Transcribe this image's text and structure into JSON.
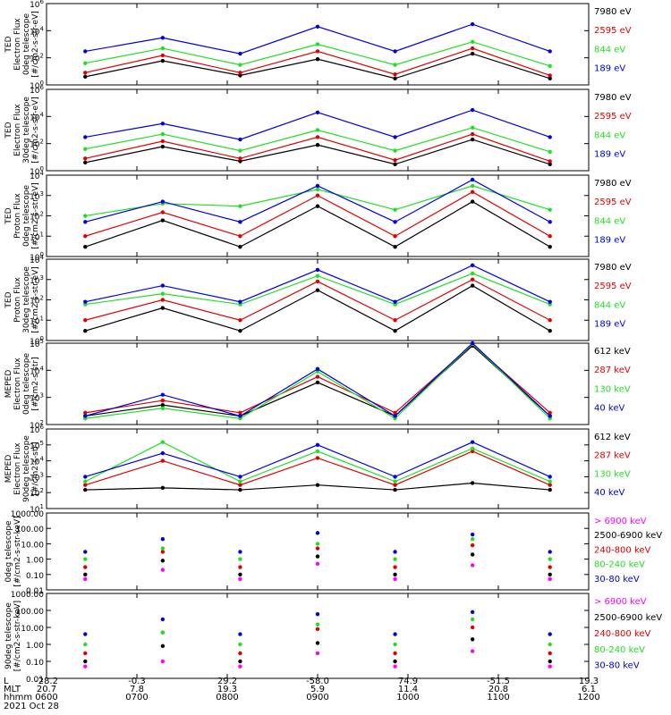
{
  "colors": {
    "black": "#000000",
    "red": "#e00000",
    "green": "#20e020",
    "blue": "#0000e0",
    "magenta": "#ff00ff"
  },
  "footer": {
    "row_labels": [
      "L",
      "MLT",
      "hhmm",
      "2021 Oct 28"
    ],
    "L_values": [
      "-28.2",
      "-0.3",
      "29.2",
      "-58.0",
      "74.9",
      "-51.5",
      "19.3"
    ],
    "MLT_values": [
      "20.7",
      "7.8",
      "19.3",
      "5.9",
      "11.4",
      "20.8",
      "6.1"
    ],
    "hhmm_values": [
      "0600",
      "0700",
      "0800",
      "0900",
      "1000",
      "1100",
      "1200"
    ]
  },
  "chart_data": [
    {
      "type": "line",
      "ylabel_lines": [
        "TED",
        "Electron Flux",
        "0deg telescope",
        "[#/cm2-s-str-eV]"
      ],
      "y_ticks": [
        "10^6",
        "10^4",
        "10^2",
        "10^0"
      ],
      "y_log": true,
      "ylim": [
        1,
        1000000
      ],
      "x": [
        "0600",
        "0700",
        "0800",
        "0900",
        "1000",
        "1100",
        "1200"
      ],
      "series": [
        {
          "name": "7980 eV",
          "color": "black",
          "values": [
            4,
            60,
            5,
            80,
            3,
            200,
            3
          ]
        },
        {
          "name": "2595 eV",
          "color": "red",
          "values": [
            8,
            150,
            8,
            300,
            6,
            500,
            5
          ]
        },
        {
          "name": "844 eV",
          "color": "green",
          "values": [
            40,
            500,
            30,
            1000,
            30,
            1500,
            25
          ]
        },
        {
          "name": "189 eV",
          "color": "blue",
          "values": [
            300,
            3000,
            200,
            20000,
            300,
            30000,
            300
          ]
        }
      ]
    },
    {
      "type": "line",
      "ylabel_lines": [
        "TED",
        "Electron Flux",
        "30deg telescope",
        "[#/cm2-s-str-eV]"
      ],
      "y_ticks": [
        "10^6",
        "10^4",
        "10^2",
        "10^0"
      ],
      "y_log": true,
      "ylim": [
        1,
        1000000
      ],
      "x": [
        "0600",
        "0700",
        "0800",
        "0900",
        "1000",
        "1100",
        "1200"
      ],
      "series": [
        {
          "name": "7980 eV",
          "color": "black",
          "values": [
            4,
            60,
            5,
            80,
            3,
            200,
            3
          ]
        },
        {
          "name": "2595 eV",
          "color": "red",
          "values": [
            8,
            150,
            8,
            300,
            6,
            500,
            5
          ]
        },
        {
          "name": "844 eV",
          "color": "green",
          "values": [
            40,
            500,
            30,
            1000,
            30,
            1500,
            25
          ]
        },
        {
          "name": "189 eV",
          "color": "blue",
          "values": [
            300,
            3000,
            200,
            20000,
            300,
            30000,
            300
          ]
        }
      ]
    },
    {
      "type": "line",
      "ylabel_lines": [
        "TED",
        "Proton Flux",
        "0deg telescope",
        "[#/cm2-s-str-eV]"
      ],
      "y_ticks": [
        "10^4",
        "10^3",
        "10^2",
        "10^1",
        "10^0"
      ],
      "y_log": true,
      "ylim": [
        1,
        10000
      ],
      "x": [
        "0600",
        "0700",
        "0800",
        "0900",
        "1000",
        "1100",
        "1200"
      ],
      "series": [
        {
          "name": "7980 eV",
          "color": "black",
          "values": [
            3,
            60,
            3,
            300,
            3,
            500,
            3
          ]
        },
        {
          "name": "2595 eV",
          "color": "red",
          "values": [
            10,
            150,
            10,
            1000,
            10,
            1500,
            10
          ]
        },
        {
          "name": "844 eV",
          "color": "green",
          "values": [
            100,
            400,
            300,
            2000,
            200,
            3000,
            200
          ]
        },
        {
          "name": "189 eV",
          "color": "blue",
          "values": [
            50,
            500,
            50,
            3000,
            50,
            6000,
            50
          ]
        }
      ]
    },
    {
      "type": "line",
      "ylabel_lines": [
        "TED",
        "Proton Flux",
        "30deg telescope",
        "[#/cm2-s-str-eV]"
      ],
      "y_ticks": [
        "10^4",
        "10^3",
        "10^2",
        "10^1",
        "10^0"
      ],
      "y_log": true,
      "ylim": [
        1,
        10000
      ],
      "x": [
        "0600",
        "0700",
        "0800",
        "0900",
        "1000",
        "1100",
        "1200"
      ],
      "series": [
        {
          "name": "7980 eV",
          "color": "black",
          "values": [
            3,
            40,
            3,
            300,
            3,
            500,
            3
          ]
        },
        {
          "name": "2595 eV",
          "color": "red",
          "values": [
            10,
            100,
            10,
            800,
            10,
            1000,
            10
          ]
        },
        {
          "name": "844 eV",
          "color": "green",
          "values": [
            60,
            200,
            60,
            1500,
            60,
            2000,
            60
          ]
        },
        {
          "name": "189 eV",
          "color": "blue",
          "values": [
            80,
            500,
            80,
            3000,
            80,
            5000,
            80
          ]
        }
      ]
    },
    {
      "type": "line",
      "ylabel_lines": [
        "MEPED",
        "Electron Flux",
        "0deg telescope",
        "[#/cm2-s-str]"
      ],
      "y_ticks": [
        "10^5",
        "10^4",
        "10^3",
        "10^2"
      ],
      "y_log": true,
      "ylim": [
        70,
        100000
      ],
      "x": [
        "0600",
        "0700",
        "0800",
        "0900",
        "1000",
        "1100",
        "1200"
      ],
      "series": [
        {
          "name": "612 keV",
          "color": "black",
          "values": [
            150,
            400,
            150,
            3000,
            150,
            80000,
            150
          ]
        },
        {
          "name": "287 keV",
          "color": "red",
          "values": [
            200,
            600,
            200,
            5000,
            200,
            90000,
            200
          ]
        },
        {
          "name": "130 keV",
          "color": "green",
          "values": [
            120,
            300,
            120,
            8000,
            120,
            95000,
            120
          ]
        },
        {
          "name": "40 keV",
          "color": "blue",
          "values": [
            150,
            1000,
            150,
            10000,
            150,
            100000,
            150
          ]
        }
      ]
    },
    {
      "type": "line",
      "ylabel_lines": [
        "MEPED",
        "Electron Flux",
        "90deg telescope",
        "[#/cm2-s-str]"
      ],
      "y_ticks": [
        "10^6",
        "10^5",
        "10^4",
        "10^3",
        "10^2",
        "10^1"
      ],
      "y_log": true,
      "ylim": [
        10,
        1000000
      ],
      "x": [
        "0600",
        "0700",
        "0800",
        "0900",
        "1000",
        "1100",
        "1200"
      ],
      "series": [
        {
          "name": "612 keV",
          "color": "black",
          "values": [
            150,
            200,
            150,
            300,
            150,
            400,
            150
          ]
        },
        {
          "name": "287 keV",
          "color": "red",
          "values": [
            300,
            10000,
            300,
            15000,
            300,
            40000,
            300
          ]
        },
        {
          "name": "130 keV",
          "color": "green",
          "values": [
            500,
            150000,
            500,
            40000,
            500,
            60000,
            500
          ]
        },
        {
          "name": "40 keV",
          "color": "blue",
          "values": [
            1000,
            30000,
            1000,
            100000,
            1000,
            150000,
            1000
          ]
        }
      ]
    },
    {
      "type": "scatter",
      "ylabel_lines": [
        "0deg telescope",
        "[#/cm2-s-str-keV]"
      ],
      "y_ticks": [
        "1000.00",
        "100.00",
        "10.00",
        "1.00",
        "0.10",
        "0.01"
      ],
      "y_log": true,
      "ylim": [
        0.01,
        1000
      ],
      "x": [
        "0600",
        "0700",
        "0800",
        "0900",
        "1000",
        "1100",
        "1200"
      ],
      "series": [
        {
          "name": "> 6900 keV",
          "color": "magenta",
          "values": [
            0.05,
            0.2,
            0.05,
            0.5,
            0.05,
            0.4,
            0.05
          ]
        },
        {
          "name": "2500-6900 keV",
          "color": "black",
          "values": [
            0.1,
            0.8,
            0.1,
            1.5,
            0.1,
            2,
            0.1
          ]
        },
        {
          "name": "240-800 keV",
          "color": "red",
          "values": [
            0.3,
            3,
            0.3,
            5,
            0.3,
            8,
            0.3
          ]
        },
        {
          "name": "80-240 keV",
          "color": "green",
          "values": [
            1,
            5,
            1,
            10,
            1,
            20,
            1
          ]
        },
        {
          "name": "30-80 keV",
          "color": "blue",
          "values": [
            3,
            20,
            3,
            50,
            3,
            40,
            3
          ]
        }
      ]
    },
    {
      "type": "scatter",
      "ylabel_lines": [
        "90deg telescope",
        "[#/cm2-s-str-keV]"
      ],
      "y_ticks": [
        "1000.00",
        "100.00",
        "10.00",
        "1.00",
        "0.10",
        "0.01"
      ],
      "y_log": true,
      "ylim": [
        0.01,
        1000
      ],
      "x": [
        "0600",
        "0700",
        "0800",
        "0900",
        "1000",
        "1100",
        "1200"
      ],
      "series": [
        {
          "name": "> 6900 keV",
          "color": "magenta",
          "values": [
            0.05,
            0.1,
            0.05,
            0.3,
            0.05,
            0.4,
            0.05
          ]
        },
        {
          "name": "2500-6900 keV",
          "color": "black",
          "values": [
            0.1,
            0.8,
            0.1,
            1.2,
            0.1,
            2,
            0.1
          ]
        },
        {
          "name": "240-800 keV",
          "color": "red",
          "values": [
            0.3,
            5,
            0.3,
            8,
            0.3,
            10,
            0.3
          ]
        },
        {
          "name": "80-240 keV",
          "color": "green",
          "values": [
            1,
            5,
            1,
            15,
            1,
            30,
            1
          ]
        },
        {
          "name": "30-80 keV",
          "color": "blue",
          "values": [
            4,
            30,
            4,
            60,
            4,
            80,
            4
          ]
        }
      ]
    }
  ]
}
